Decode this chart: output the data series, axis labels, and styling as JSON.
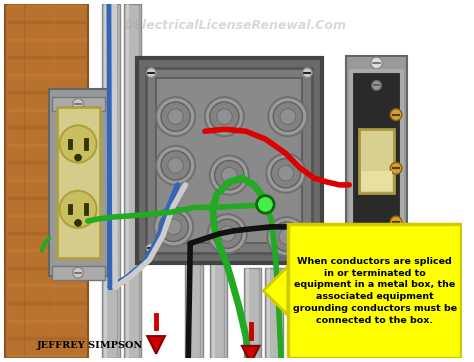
{
  "watermark": "©ElectricalLicenseRenewal.Com",
  "watermark_color": "#aaaaaa",
  "watermark_alpha": 0.45,
  "author": "JEFFREY SIMPSON",
  "annotation_text": "When conductors are spliced\nin or terminated to\nequipment in a metal box, the\nassociated equipment\ngrounding conductors must be\nconnected to the box.",
  "annotation_bg": "#ffff00",
  "annotation_border": "#cccc00",
  "annotation_text_color": "#000000",
  "bg_color": "#ffffff",
  "wood_color": "#b8722e",
  "wood_dark": "#8a5520",
  "wood_light": "#cc8844",
  "outlet_body": "#d4cc8a",
  "outlet_dark": "#b0a040",
  "outlet_socket": "#c8c060",
  "switch_plate": "#aaaaaa",
  "switch_dark": "#333333",
  "switch_toggle": "#d4cc70",
  "wire_red": "#dd0000",
  "wire_black": "#111111",
  "wire_white": "#cccccc",
  "wire_green": "#22aa22",
  "wire_blue": "#3366bb",
  "wire_green_bright": "#33cc33",
  "arrow_yellow": "#eeee00",
  "arrow_yellow_dark": "#aaaa00",
  "red_arrow": "#cc0000",
  "box_outer": "#888888",
  "box_mid": "#707070",
  "box_inner": "#999999",
  "box_deep": "#858585",
  "conduit_color": "#b8b8b8",
  "conduit_edge": "#888888",
  "fig_width": 4.74,
  "fig_height": 3.62,
  "dpi": 100
}
